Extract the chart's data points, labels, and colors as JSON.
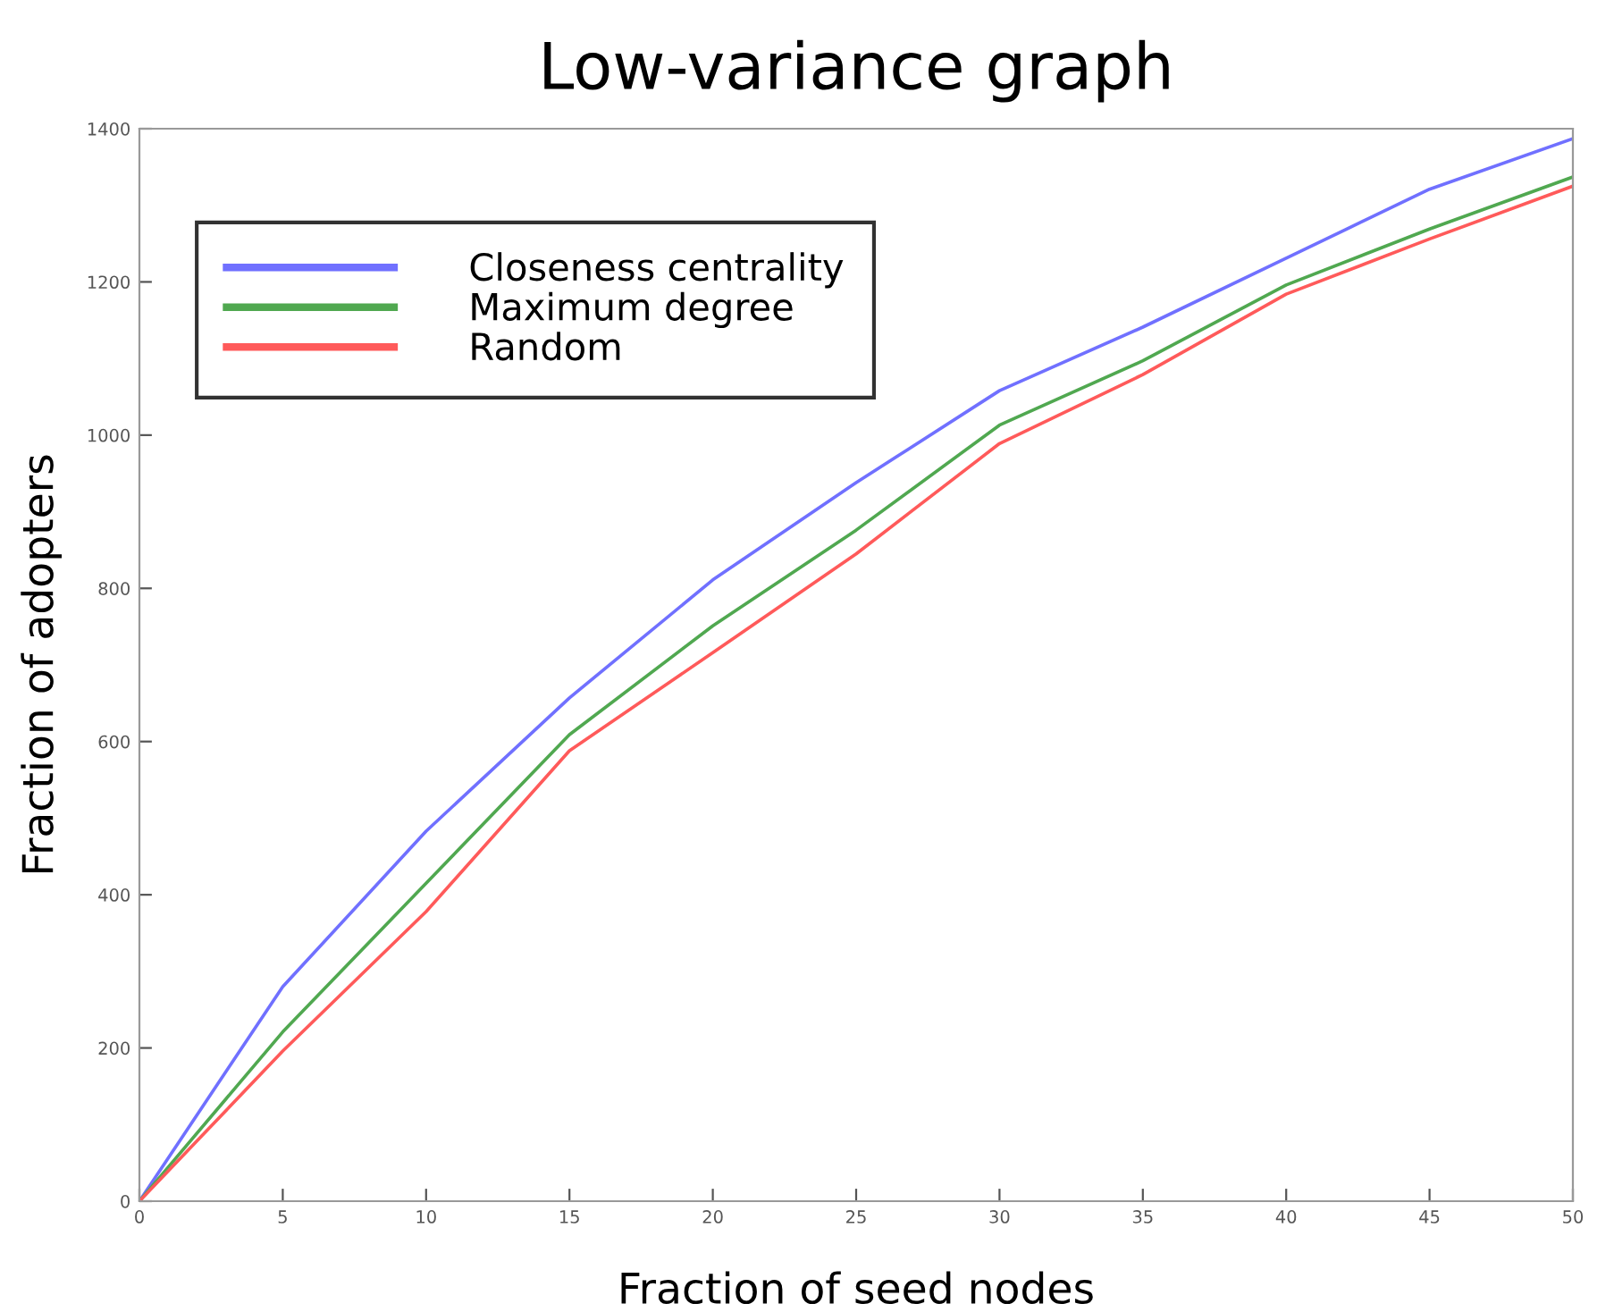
{
  "chart_data": {
    "type": "line",
    "title": "Low-variance graph",
    "xlabel": "Fraction of seed nodes",
    "ylabel": "Fraction of adopters",
    "x": [
      0,
      5,
      10,
      15,
      20,
      25,
      30,
      35,
      40,
      45,
      50
    ],
    "series": [
      {
        "name": "Closeness centrality",
        "color": "#7070ff",
        "values": [
          0,
          280,
          483,
          657,
          811,
          938,
          1058,
          1141,
          1231,
          1321,
          1387
        ]
      },
      {
        "name": "Maximum degree",
        "color": "#50a850",
        "values": [
          0,
          221,
          415,
          609,
          751,
          876,
          1013,
          1097,
          1196,
          1269,
          1337
        ]
      },
      {
        "name": "Random",
        "color": "#ff5a5a",
        "values": [
          0,
          196,
          378,
          588,
          716,
          845,
          989,
          1079,
          1184,
          1256,
          1325
        ]
      }
    ],
    "xlim": [
      0,
      50
    ],
    "xticks": [
      0,
      5,
      10,
      15,
      20,
      25,
      30,
      35,
      40,
      45,
      50
    ],
    "ylim": [
      0,
      1400
    ],
    "yticks": [
      0,
      200,
      400,
      600,
      800,
      1000,
      1200,
      1400
    ],
    "grid": false,
    "legend": "top left",
    "marker": "none",
    "line_style": "solid"
  }
}
